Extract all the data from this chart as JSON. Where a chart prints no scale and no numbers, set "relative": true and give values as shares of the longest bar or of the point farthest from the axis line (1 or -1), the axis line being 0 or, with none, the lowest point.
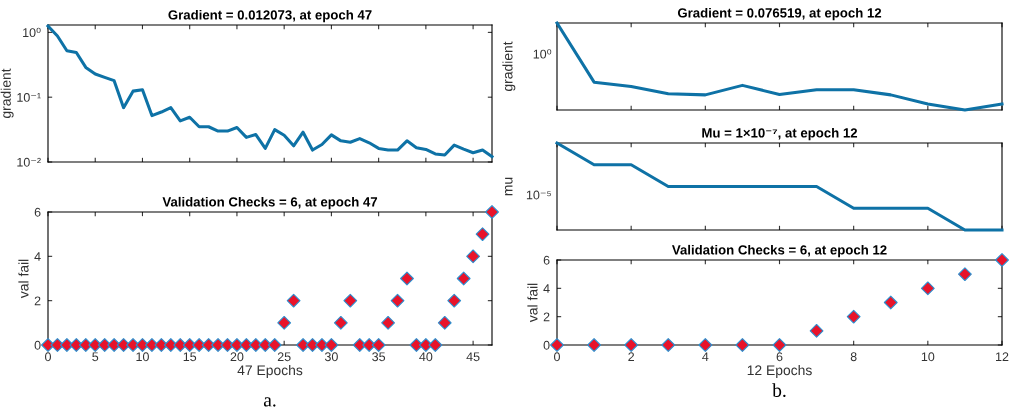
{
  "chart_data": [
    {
      "type": "line",
      "title": "Gradient = 0.012073, at epoch 47",
      "ylabel": "gradient",
      "log": "y",
      "tick_labels": "y",
      "grid": false,
      "marker": "none",
      "line_style": "solid",
      "x": [
        0,
        1,
        2,
        3,
        4,
        5,
        6,
        7,
        8,
        9,
        10,
        11,
        12,
        13,
        14,
        15,
        16,
        17,
        18,
        19,
        20,
        21,
        22,
        23,
        24,
        25,
        26,
        27,
        28,
        29,
        30,
        31,
        32,
        33,
        34,
        35,
        36,
        37,
        38,
        39,
        40,
        41,
        42,
        43,
        44,
        45,
        46,
        47
      ],
      "series": [
        {
          "color": "#0e72a6",
          "values": [
            1.25,
            0.88,
            0.52,
            0.49,
            0.288,
            0.228,
            0.202,
            0.18,
            0.069,
            0.124,
            0.13,
            0.052,
            0.059,
            0.069,
            0.043,
            0.049,
            0.035,
            0.035,
            0.03,
            0.03,
            0.034,
            0.024,
            0.0265,
            0.0162,
            0.0316,
            0.0259,
            0.0178,
            0.0288,
            0.0153,
            0.0186,
            0.0262,
            0.0212,
            0.0202,
            0.023,
            0.0198,
            0.0162,
            0.0153,
            0.0153,
            0.0212,
            0.0166,
            0.0156,
            0.0133,
            0.0128,
            0.0182,
            0.0158,
            0.0139,
            0.0153,
            0.012073
          ]
        }
      ],
      "xlim": [
        0,
        47
      ],
      "xticks": [
        0,
        5,
        10,
        15,
        20,
        25,
        30,
        35,
        40,
        45
      ],
      "ylim": [
        0.01,
        1.3
      ],
      "yticks": [
        {
          "value": 0.01,
          "label": "10⁻²"
        },
        {
          "value": 0.1,
          "label": "10⁻¹"
        },
        {
          "value": 1,
          "label": "10⁰"
        }
      ]
    },
    {
      "type": "scatter",
      "title": "Validation Checks = 6, at epoch 47",
      "xlabel": "47 Epochs",
      "ylabel": "val fail",
      "grid": false,
      "marker": "diamond",
      "annotations": [
        "a."
      ],
      "x": [
        0,
        1,
        2,
        3,
        4,
        5,
        6,
        7,
        8,
        9,
        10,
        11,
        12,
        13,
        14,
        15,
        16,
        17,
        18,
        19,
        20,
        21,
        22,
        23,
        24,
        25,
        26,
        27,
        28,
        29,
        30,
        31,
        32,
        33,
        34,
        35,
        36,
        37,
        38,
        39,
        40,
        41,
        42,
        43,
        44,
        45,
        46,
        47
      ],
      "series": [
        {
          "color": "#e8132a",
          "values": [
            0,
            0,
            0,
            0,
            0,
            0,
            0,
            0,
            0,
            0,
            0,
            0,
            0,
            0,
            0,
            0,
            0,
            0,
            0,
            0,
            0,
            0,
            0,
            0,
            0,
            1,
            2,
            0,
            0,
            0,
            0,
            1,
            2,
            0,
            0,
            0,
            1,
            2,
            3,
            0,
            0,
            0,
            1,
            2,
            3,
            4,
            5,
            6
          ]
        }
      ],
      "xlim": [
        0,
        47
      ],
      "xticks": [
        0,
        5,
        10,
        15,
        20,
        25,
        30,
        35,
        40,
        45
      ],
      "ylim": [
        0,
        6
      ],
      "yticks": [
        0,
        2,
        4,
        6
      ]
    },
    {
      "type": "line",
      "title": "Gradient = 0.076519, at epoch 12",
      "ylabel": "gradient",
      "relative": true,
      "tick_labels": false,
      "grid": false,
      "marker": "none",
      "line_style": "solid",
      "annotations": [
        "10⁰"
      ],
      "x": [
        0,
        1,
        2,
        3,
        4,
        5,
        6,
        7,
        8,
        9,
        10,
        11,
        12
      ],
      "series": [
        {
          "color": "#0e72a6",
          "values": [
            1,
            0.32,
            0.27,
            0.186,
            0.174,
            0.283,
            0.178,
            0.233,
            0.233,
            0.174,
            0.07,
            0,
            0.07
          ]
        }
      ],
      "xlim": [
        0,
        12
      ],
      "xticks": [
        0,
        2,
        4,
        6,
        8,
        10,
        12
      ]
    },
    {
      "type": "line",
      "title": "Mu = 1×10⁻⁷, at epoch 12",
      "ylabel": "mu",
      "relative": true,
      "tick_labels": false,
      "grid": false,
      "marker": "none",
      "line_style": "solid",
      "annotations": [
        "10⁻⁵"
      ],
      "x": [
        0,
        1,
        2,
        3,
        4,
        5,
        6,
        7,
        8,
        9,
        10,
        11,
        12
      ],
      "series": [
        {
          "color": "#0e72a6",
          "values": [
            1,
            0.75,
            0.75,
            0.5,
            0.5,
            0.5,
            0.5,
            0.5,
            0.25,
            0.25,
            0.25,
            0,
            0
          ]
        }
      ],
      "xlim": [
        0,
        12
      ],
      "xticks": [
        0,
        2,
        4,
        6,
        8,
        10,
        12
      ]
    },
    {
      "type": "scatter",
      "title": "Validation Checks = 6, at epoch 12",
      "xlabel": "12 Epochs",
      "ylabel": "val fail",
      "grid": false,
      "marker": "diamond",
      "annotations": [
        "b."
      ],
      "x": [
        0,
        1,
        2,
        3,
        4,
        5,
        6,
        7,
        8,
        9,
        10,
        11,
        12
      ],
      "series": [
        {
          "color": "#e8132a",
          "values": [
            0,
            0,
            0,
            0,
            0,
            0,
            0,
            1,
            2,
            3,
            4,
            5,
            6
          ]
        }
      ],
      "xlim": [
        0,
        12
      ],
      "xticks": [
        0,
        2,
        4,
        6,
        8,
        10,
        12
      ],
      "ylim": [
        0,
        6
      ],
      "yticks": [
        0,
        2,
        4,
        6
      ]
    }
  ]
}
